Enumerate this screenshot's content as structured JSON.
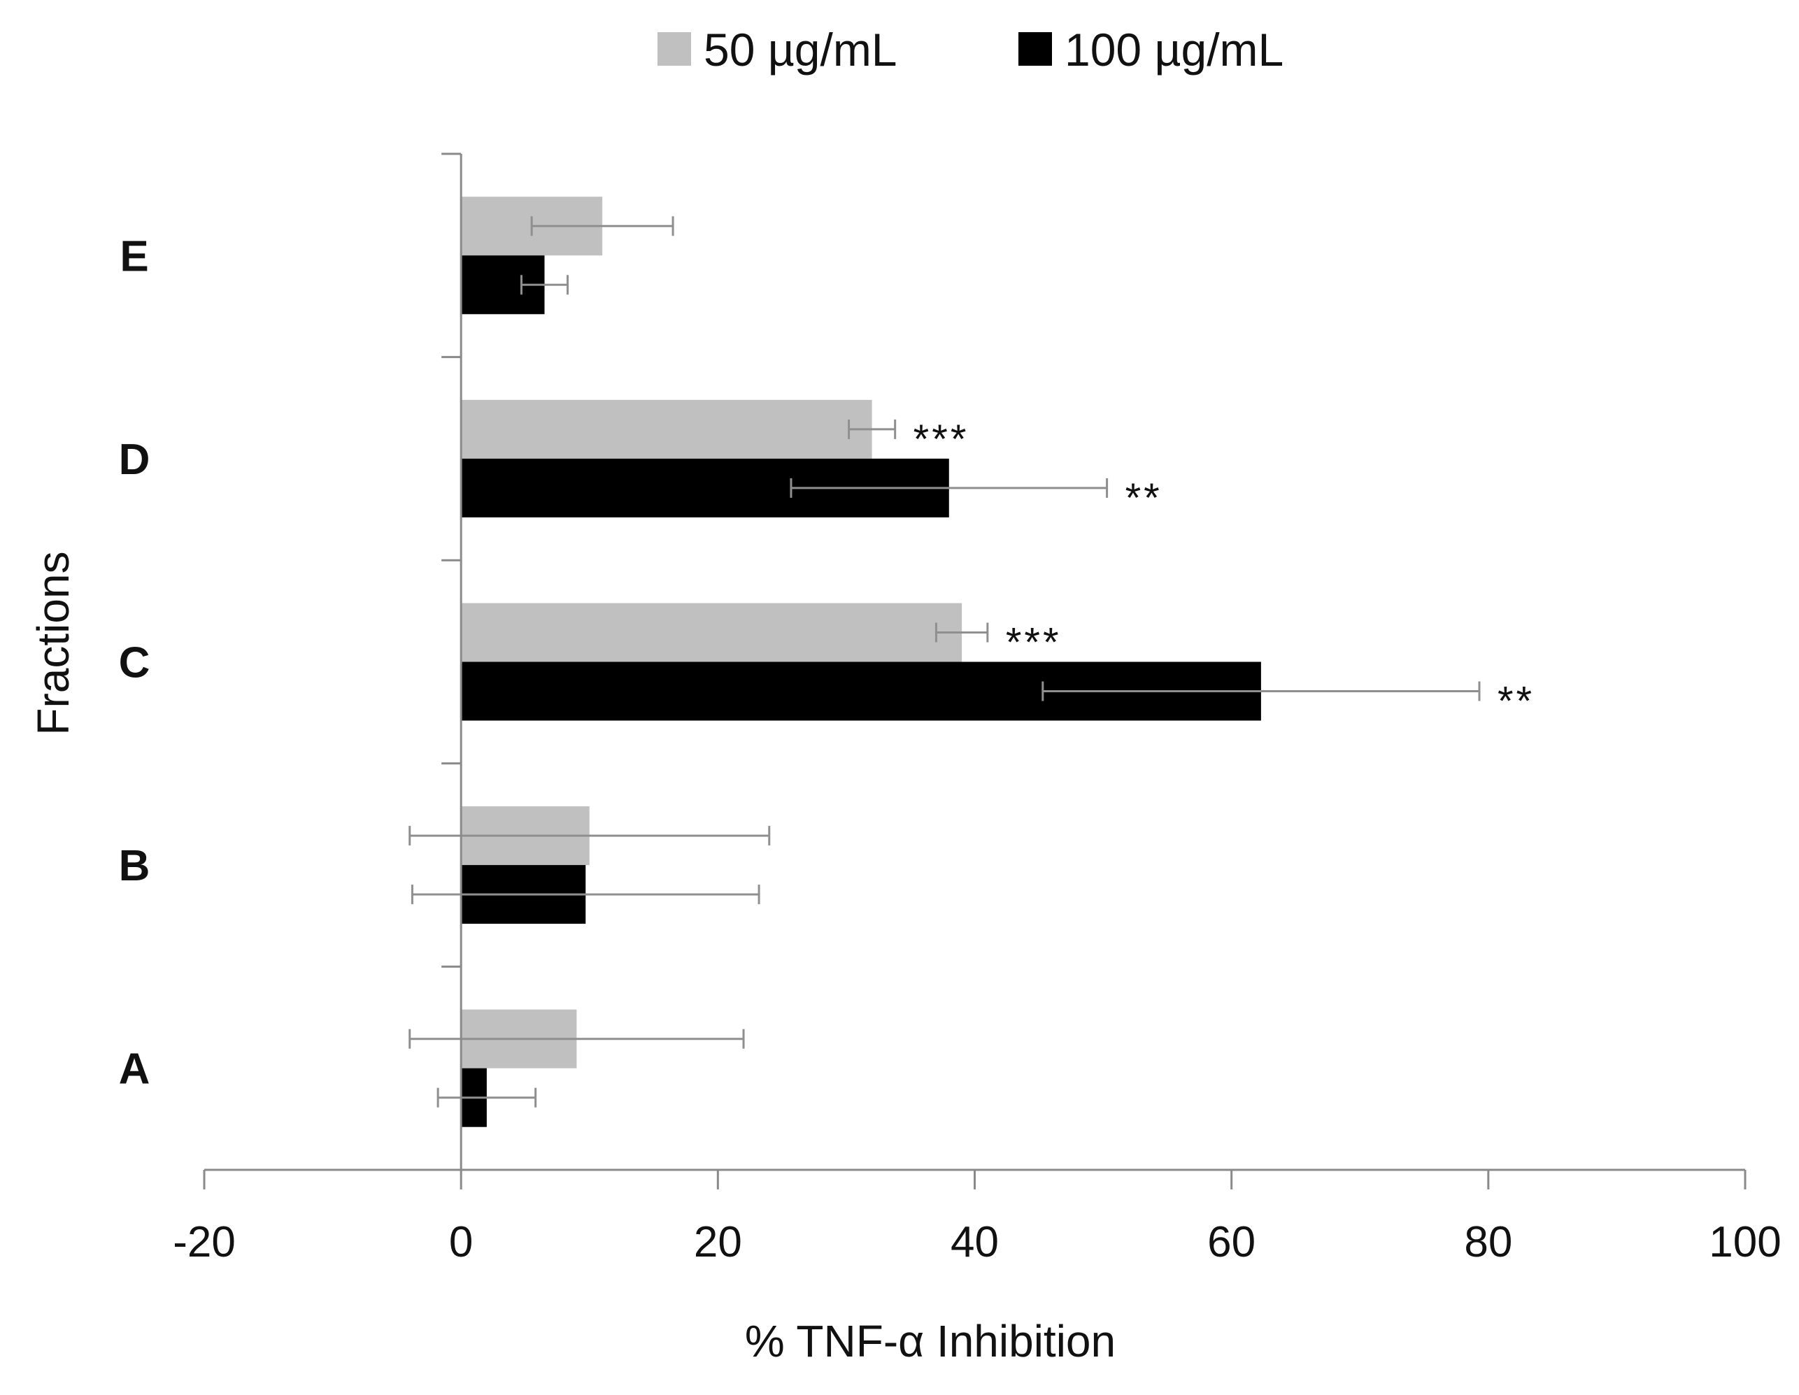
{
  "chart_data": {
    "type": "bar",
    "orientation": "horizontal",
    "title": "",
    "xlabel": "% TNF-α Inhibition",
    "ylabel": "Fractions",
    "xlim": [
      -20,
      100
    ],
    "xticks": [
      -20,
      0,
      20,
      40,
      60,
      80,
      100
    ],
    "xtick_labels": [
      "-20",
      "0",
      "20",
      "40",
      "60",
      "80",
      "100"
    ],
    "categories": [
      "A",
      "B",
      "C",
      "D",
      "E"
    ],
    "legend_position": "top-center",
    "grid": false,
    "series": [
      {
        "name": "50 µg/mL",
        "color": "#c0c0c0",
        "values": [
          9,
          10,
          39,
          32,
          11
        ],
        "errors": [
          13,
          14,
          2,
          1.8,
          5.5
        ],
        "significance": [
          "",
          "",
          "***",
          "***",
          ""
        ]
      },
      {
        "name": "100 µg/mL",
        "color": "#000000",
        "values": [
          2,
          9.7,
          62.3,
          38,
          6.5
        ],
        "errors": [
          3.8,
          13.5,
          17,
          12.3,
          1.8
        ],
        "significance": [
          "",
          "",
          "**",
          "**",
          ""
        ]
      }
    ]
  }
}
